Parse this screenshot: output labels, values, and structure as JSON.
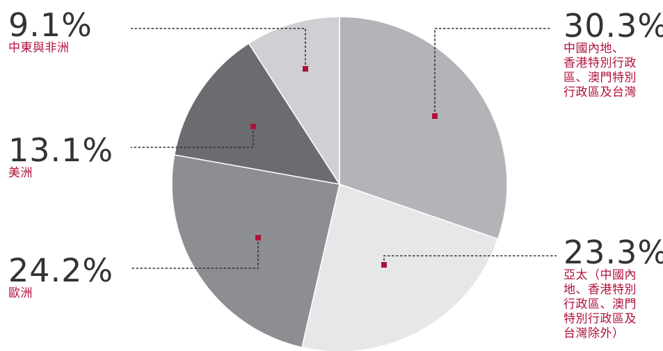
{
  "chart_data": {
    "type": "pie",
    "start_angle_deg": 0,
    "direction": "clockwise",
    "slices": [
      {
        "label": "中國內地、香港特別行政區、澳門特別行政區及台灣",
        "value": 30.3,
        "value_label": "30.3%",
        "color": "#b3b4b8"
      },
      {
        "label": "亞太（中國內地、香港特別行政區、澳門特別行政區及台灣除外）",
        "value": 23.3,
        "value_label": "23.3%",
        "color": "#e6e7e8"
      },
      {
        "label": "歐洲",
        "value": 24.2,
        "value_label": "24.2%",
        "color": "#8d8e92"
      },
      {
        "label": "美洲",
        "value": 13.1,
        "value_label": "13.1%",
        "color": "#6b6c70"
      },
      {
        "label": "中東與非洲",
        "value": 9.1,
        "value_label": "9.1%",
        "color": "#cfd0d3"
      }
    ]
  },
  "labels": [
    {
      "pct": "30.3%",
      "cat": "中國內地、\n香港特別行政\n區、澳門特別\n行政區及台灣"
    },
    {
      "pct": "23.3%",
      "cat": "亞太（中國內\n地、香港特別\n行政區、澳門\n特別行政區及\n台灣除外）"
    },
    {
      "pct": "24.2%",
      "cat": "歐洲"
    },
    {
      "pct": "13.1%",
      "cat": "美洲"
    },
    {
      "pct": "9.1%",
      "cat": "中東與非洲"
    }
  ],
  "colors": {
    "marker": "#b0113a",
    "leader": "#333333",
    "percent_text": "#333333",
    "category_text": "#b0113a"
  }
}
